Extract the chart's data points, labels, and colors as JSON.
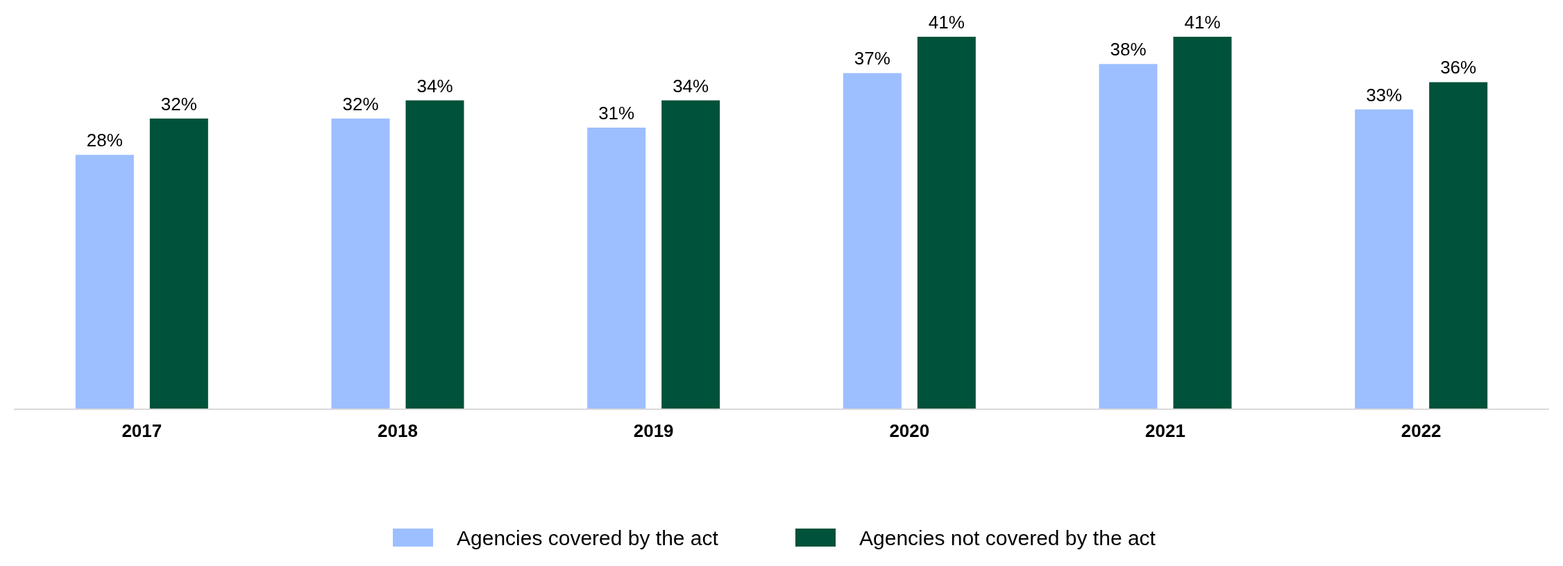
{
  "chart_data": {
    "type": "bar",
    "categories": [
      "2017",
      "2018",
      "2019",
      "2020",
      "2021",
      "2022"
    ],
    "series": [
      {
        "name": "Agencies covered by the act",
        "color": "#9dbfff",
        "values": [
          28,
          32,
          31,
          37,
          38,
          33
        ],
        "value_labels": [
          "28%",
          "32%",
          "31%",
          "37%",
          "38%",
          "33%"
        ]
      },
      {
        "name": "Agencies not covered by the act",
        "color": "#01523a",
        "values": [
          32,
          34,
          34,
          41,
          41,
          36
        ],
        "value_labels": [
          "32%",
          "34%",
          "34%",
          "41%",
          "41%",
          "36%"
        ]
      }
    ],
    "legend": "bottom"
  }
}
